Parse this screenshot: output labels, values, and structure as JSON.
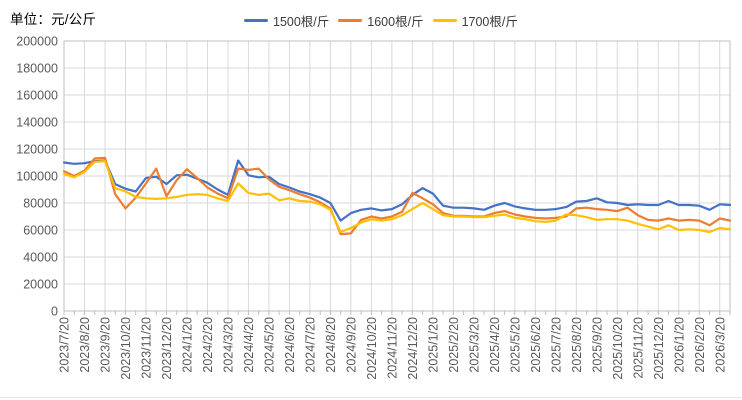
{
  "header": {
    "unit_label": "单位：元/公斤"
  },
  "colors": {
    "background": "#FFFFFF",
    "grid_line": "#D9D9D9",
    "axis_line": "#BFBFBF",
    "axis_text": "#595959",
    "legend_text": "#3B3B3B",
    "series_blue": "#4472C4",
    "series_orange": "#ED7D31",
    "series_yellow": "#FFC000"
  },
  "chart_data": {
    "type": "line",
    "title": "",
    "xlabel": "",
    "ylabel": "单位：元/公斤",
    "ylim": [
      0,
      200000
    ],
    "y_ticks": [
      0,
      20000,
      40000,
      60000,
      80000,
      100000,
      120000,
      140000,
      160000,
      180000,
      200000
    ],
    "grid": true,
    "legend_position": "top-center",
    "x_label_rotation": -90,
    "points_per_month": 2,
    "x_tick_labels": [
      "2023/7/20",
      "2023/8/20",
      "2023/9/20",
      "2023/10/20",
      "2023/11/20",
      "2023/12/20",
      "2024/1/20",
      "2024/2/20",
      "2024/3/20",
      "2024/4/20",
      "2024/5/20",
      "2024/6/20",
      "2024/7/20",
      "2024/8/20",
      "2024/9/20",
      "2024/10/20",
      "2024/11/20",
      "2024/12/20",
      "2025/1/20",
      "2025/2/20",
      "2025/3/20",
      "2025/4/20",
      "2025/5/20",
      "2025/6/20",
      "2025/7/20",
      "2025/8/20",
      "2025/9/20",
      "2025/10/20",
      "2025/11/20",
      "2025/12/20",
      "2026/1/20",
      "2026/2/20",
      "2026/3/20"
    ],
    "series": [
      {
        "name": "1500根/斤",
        "color": "#4472C4",
        "values": [
          110000,
          109000,
          109500,
          111000,
          111500,
          94000,
          90500,
          88500,
          98500,
          99500,
          94000,
          100500,
          101000,
          98000,
          95000,
          90000,
          86000,
          111500,
          100500,
          99000,
          99500,
          94000,
          91500,
          88500,
          86500,
          84000,
          80000,
          67000,
          72500,
          75000,
          76000,
          74500,
          75500,
          79000,
          86000,
          91000,
          87000,
          78000,
          76500,
          76500,
          76000,
          75000,
          78000,
          80000,
          77500,
          76000,
          75000,
          75000,
          75500,
          77000,
          81000,
          81500,
          83500,
          80500,
          80000,
          78500,
          79000,
          78500,
          78500,
          81500,
          78500,
          78500,
          78000,
          75000,
          79000,
          78500
        ]
      },
      {
        "name": "1600根/斤",
        "color": "#ED7D31",
        "values": [
          103500,
          100000,
          104000,
          113000,
          113500,
          86500,
          76000,
          84000,
          94500,
          105500,
          85000,
          97000,
          105000,
          98500,
          91500,
          87000,
          83500,
          105500,
          104500,
          105500,
          97500,
          92000,
          89500,
          86500,
          84000,
          80500,
          76000,
          57000,
          57500,
          67500,
          70000,
          68500,
          70000,
          73500,
          87500,
          83500,
          79000,
          72500,
          70500,
          70500,
          70000,
          70000,
          72500,
          74000,
          71500,
          70000,
          69000,
          68500,
          69000,
          70000,
          76000,
          76500,
          75500,
          75000,
          74000,
          76500,
          71000,
          67500,
          67000,
          68500,
          67000,
          67500,
          67000,
          63500,
          68500,
          67000
        ]
      },
      {
        "name": "1700根/斤",
        "color": "#FFC000",
        "values": [
          101500,
          99000,
          103000,
          110500,
          111000,
          91000,
          88500,
          84500,
          83500,
          83000,
          83500,
          84500,
          86000,
          86500,
          86000,
          83500,
          81500,
          94500,
          87500,
          86000,
          87000,
          82000,
          83500,
          81500,
          81000,
          79000,
          75000,
          58500,
          61500,
          65500,
          68000,
          67000,
          68000,
          71000,
          75500,
          80000,
          75500,
          71000,
          70000,
          70000,
          69500,
          69500,
          70500,
          71500,
          69000,
          68000,
          66500,
          66000,
          67000,
          71500,
          71000,
          69500,
          67500,
          68000,
          68000,
          67000,
          64500,
          62500,
          60500,
          63500,
          60000,
          60500,
          60000,
          58500,
          61500,
          60500
        ]
      }
    ]
  }
}
